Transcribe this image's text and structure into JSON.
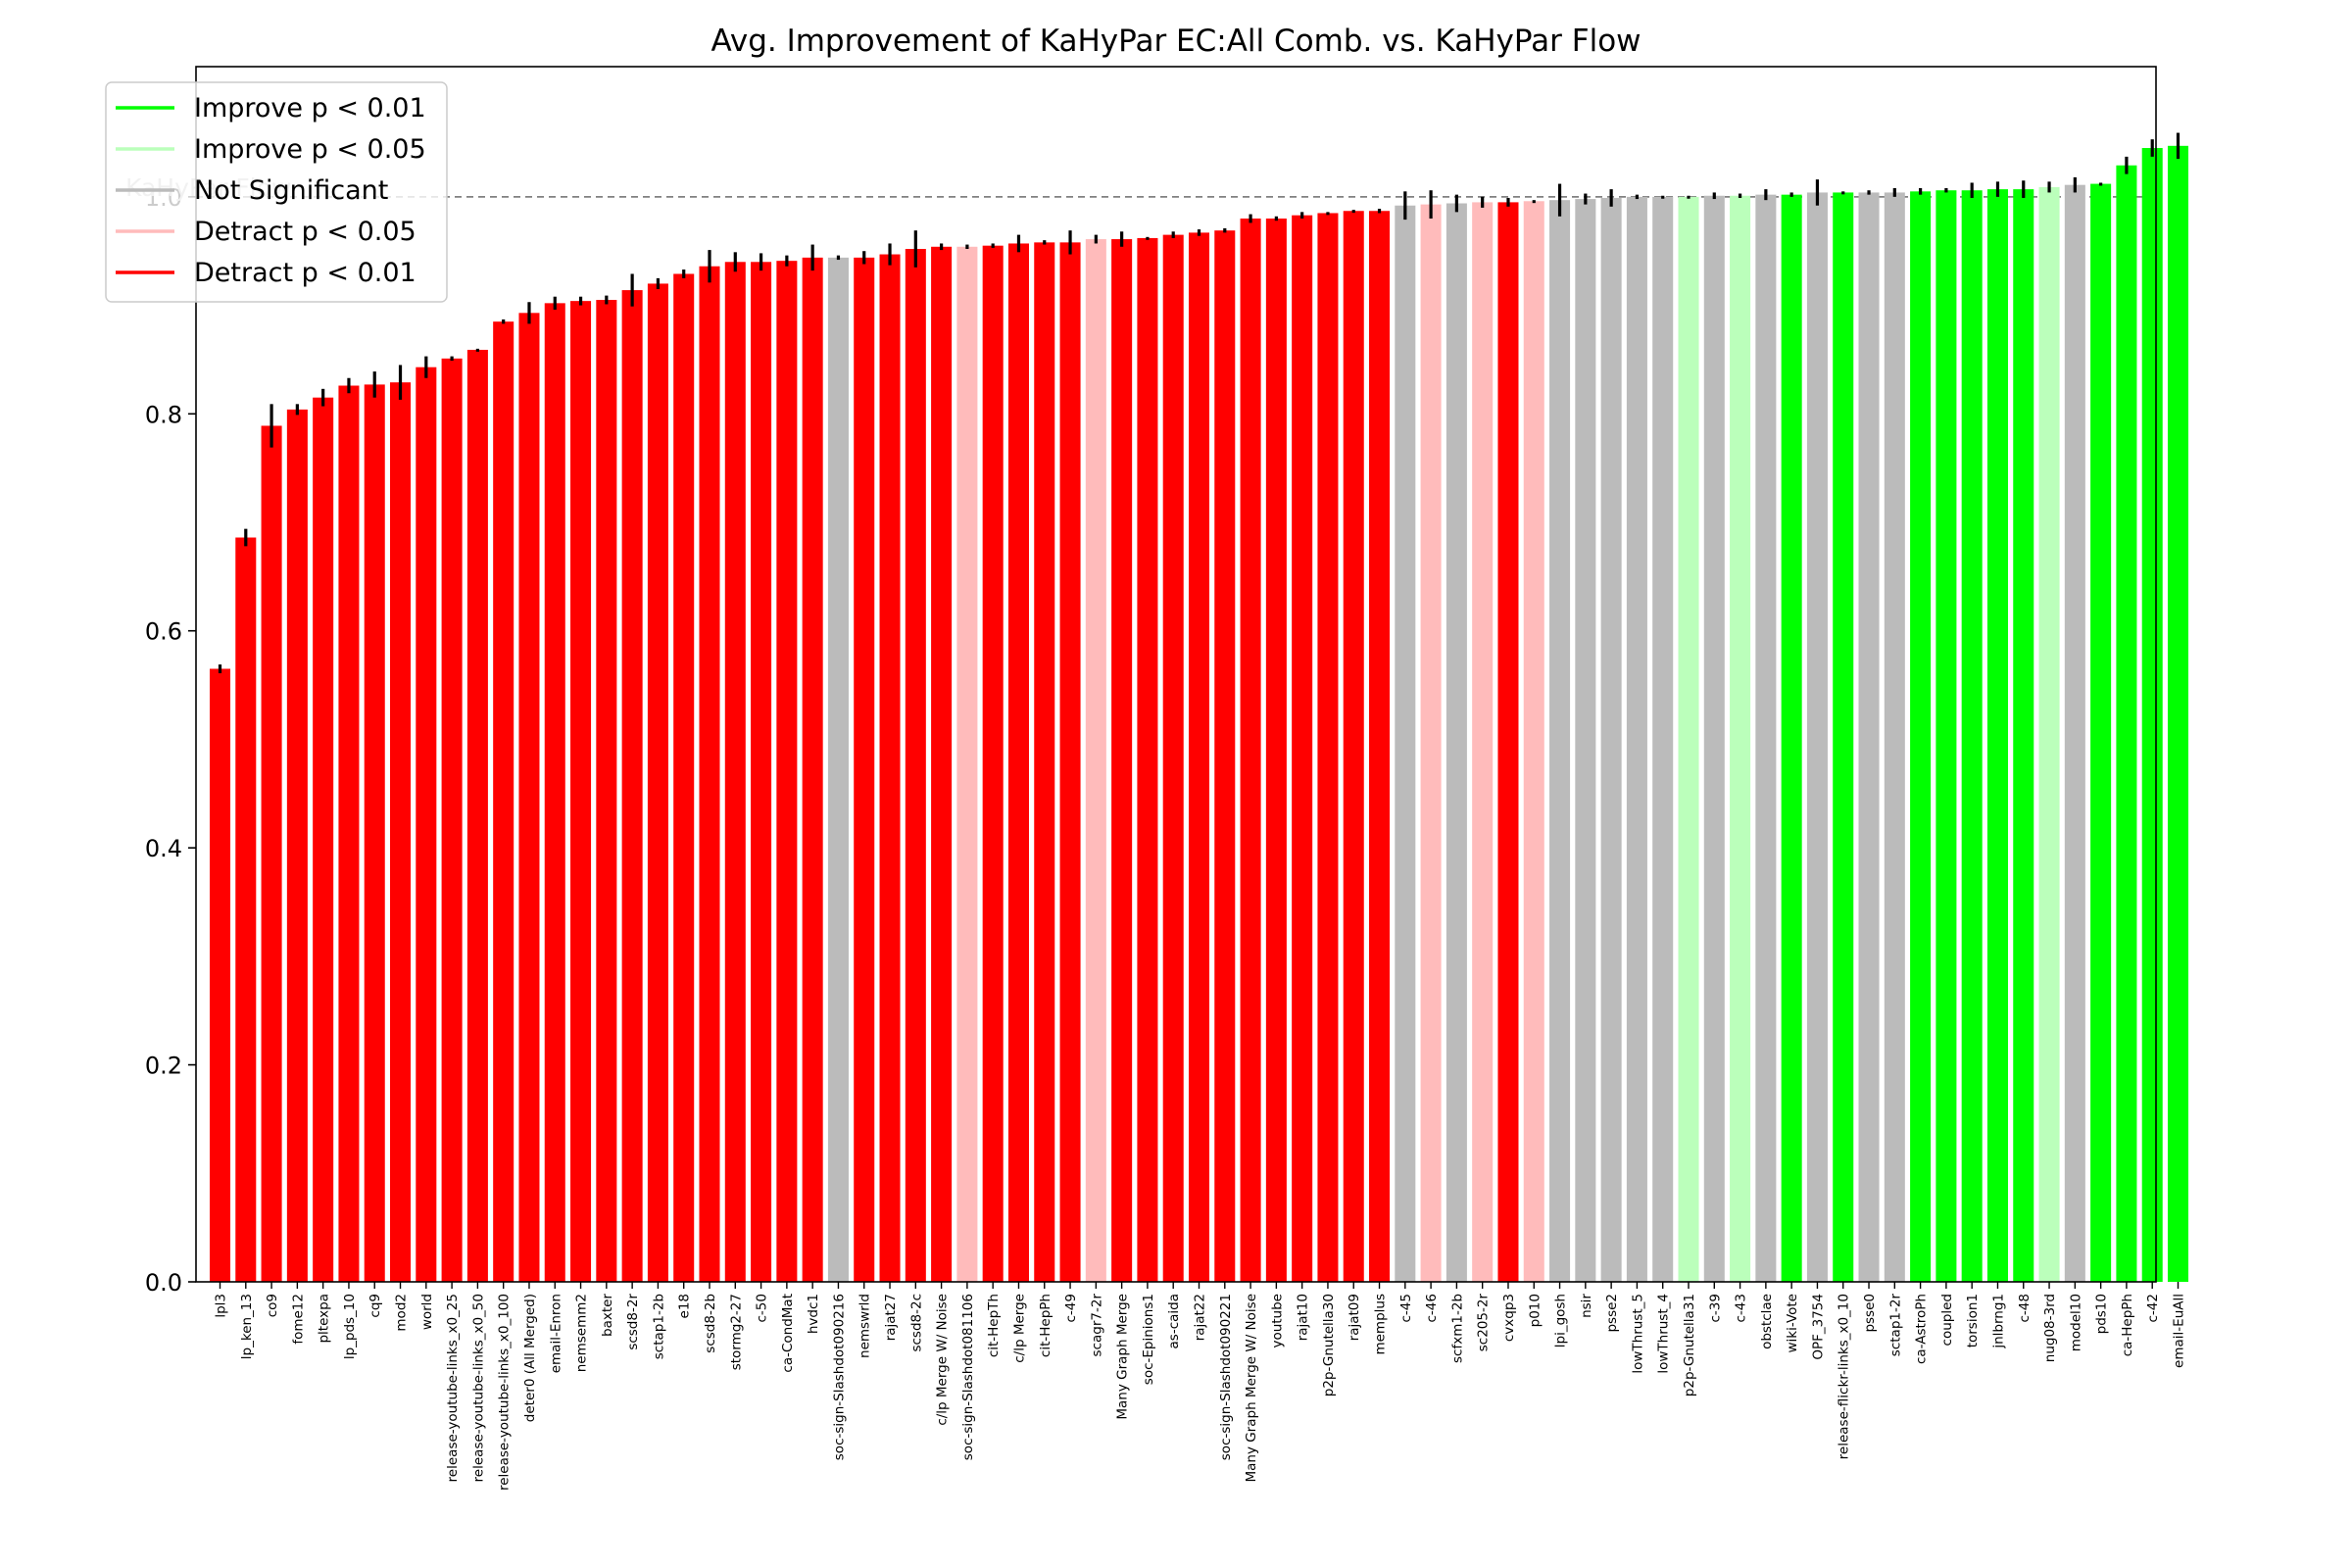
{
  "chart_data": {
    "type": "bar",
    "title": "Avg. Improvement of KaHyPar EC:All Comb. vs. KaHyPar Flow",
    "xlabel": "",
    "ylabel": "",
    "ylim": [
      0,
      1.12
    ],
    "yticks": [
      "0.0",
      "0.2",
      "0.4",
      "0.6",
      "0.8",
      "1.0"
    ],
    "reference_line": {
      "value": 1.0,
      "label": "KaHyPar Flow"
    },
    "legend_position": "top-left",
    "legend": [
      {
        "label": "Improve p < 0.01",
        "color": "#00ff00"
      },
      {
        "label": "Improve p < 0.05",
        "color": "#bbffbb"
      },
      {
        "label": "Not Significant",
        "color": "#bbbbbb"
      },
      {
        "label": "Detract p < 0.05",
        "color": "#ffbbbb"
      },
      {
        "label": "Detract p < 0.01",
        "color": "#ff0000"
      }
    ],
    "colors": {
      "ID1": "#00ff00",
      "ID5": "#bbffbb",
      "NS": "#bbbbbb",
      "DD5": "#ffbbbb",
      "DD1": "#ff0000"
    },
    "bars": [
      {
        "label": "lpl3",
        "value": 0.565,
        "err": 0.004,
        "sig": "DD1"
      },
      {
        "label": "lp_ken_13",
        "value": 0.686,
        "err": 0.008,
        "sig": "DD1"
      },
      {
        "label": "co9",
        "value": 0.789,
        "err": 0.02,
        "sig": "DD1"
      },
      {
        "label": "fome12",
        "value": 0.804,
        "err": 0.005,
        "sig": "DD1"
      },
      {
        "label": "pltexpa",
        "value": 0.815,
        "err": 0.008,
        "sig": "DD1"
      },
      {
        "label": "lp_pds_10",
        "value": 0.826,
        "err": 0.007,
        "sig": "DD1"
      },
      {
        "label": "cq9",
        "value": 0.827,
        "err": 0.012,
        "sig": "DD1"
      },
      {
        "label": "mod2",
        "value": 0.829,
        "err": 0.016,
        "sig": "DD1"
      },
      {
        "label": "world",
        "value": 0.843,
        "err": 0.01,
        "sig": "DD1"
      },
      {
        "label": "release-youtube-links_x0_25",
        "value": 0.851,
        "err": 0.002,
        "sig": "DD1"
      },
      {
        "label": "release-youtube-links_x0_50",
        "value": 0.859,
        "err": 0.001,
        "sig": "DD1"
      },
      {
        "label": "release-youtube-links_x0_100",
        "value": 0.885,
        "err": 0.002,
        "sig": "DD1"
      },
      {
        "label": "deter0 (All Merged)",
        "value": 0.893,
        "err": 0.01,
        "sig": "DD1"
      },
      {
        "label": "email-Enron",
        "value": 0.902,
        "err": 0.006,
        "sig": "DD1"
      },
      {
        "label": "nemsemm2",
        "value": 0.904,
        "err": 0.004,
        "sig": "DD1"
      },
      {
        "label": "baxter",
        "value": 0.905,
        "err": 0.004,
        "sig": "DD1"
      },
      {
        "label": "scsd8-2r",
        "value": 0.914,
        "err": 0.015,
        "sig": "DD1"
      },
      {
        "label": "sctap1-2b",
        "value": 0.92,
        "err": 0.005,
        "sig": "DD1"
      },
      {
        "label": "e18",
        "value": 0.929,
        "err": 0.004,
        "sig": "DD1"
      },
      {
        "label": "scsd8-2b",
        "value": 0.936,
        "err": 0.015,
        "sig": "DD1"
      },
      {
        "label": "stormg2-27",
        "value": 0.94,
        "err": 0.009,
        "sig": "DD1"
      },
      {
        "label": "c-50",
        "value": 0.94,
        "err": 0.008,
        "sig": "DD1"
      },
      {
        "label": "ca-CondMat",
        "value": 0.941,
        "err": 0.005,
        "sig": "DD1"
      },
      {
        "label": "hvdc1",
        "value": 0.944,
        "err": 0.012,
        "sig": "DD1"
      },
      {
        "label": "soc-sign-Slashdot090216",
        "value": 0.944,
        "err": 0.002,
        "sig": "NS"
      },
      {
        "label": "nemswrld",
        "value": 0.944,
        "err": 0.006,
        "sig": "DD1"
      },
      {
        "label": "rajat27",
        "value": 0.947,
        "err": 0.01,
        "sig": "DD1"
      },
      {
        "label": "scsd8-2c",
        "value": 0.952,
        "err": 0.017,
        "sig": "DD1"
      },
      {
        "label": "c/lp Merge W/ Noise",
        "value": 0.954,
        "err": 0.003,
        "sig": "DD1"
      },
      {
        "label": "soc-sign-Slashdot081106",
        "value": 0.954,
        "err": 0.002,
        "sig": "DD5"
      },
      {
        "label": "cit-HepTh",
        "value": 0.955,
        "err": 0.002,
        "sig": "DD1"
      },
      {
        "label": "c/lp Merge",
        "value": 0.957,
        "err": 0.008,
        "sig": "DD1"
      },
      {
        "label": "cit-HepPh",
        "value": 0.958,
        "err": 0.002,
        "sig": "DD1"
      },
      {
        "label": "c-49",
        "value": 0.958,
        "err": 0.011,
        "sig": "DD1"
      },
      {
        "label": "scagr7-2r",
        "value": 0.961,
        "err": 0.004,
        "sig": "DD5"
      },
      {
        "label": "Many Graph Merge",
        "value": 0.961,
        "err": 0.007,
        "sig": "DD1"
      },
      {
        "label": "soc-Epinions1",
        "value": 0.962,
        "err": 0.001,
        "sig": "DD1"
      },
      {
        "label": "as-caida",
        "value": 0.965,
        "err": 0.003,
        "sig": "DD1"
      },
      {
        "label": "rajat22",
        "value": 0.967,
        "err": 0.003,
        "sig": "DD1"
      },
      {
        "label": "soc-sign-Slashdot090221",
        "value": 0.969,
        "err": 0.002,
        "sig": "DD1"
      },
      {
        "label": "Many Graph Merge W/ Noise",
        "value": 0.98,
        "err": 0.004,
        "sig": "DD1"
      },
      {
        "label": "youtube",
        "value": 0.98,
        "err": 0.002,
        "sig": "DD1"
      },
      {
        "label": "rajat10",
        "value": 0.983,
        "err": 0.003,
        "sig": "DD1"
      },
      {
        "label": "p2p-Gnutella30",
        "value": 0.985,
        "err": 0.001,
        "sig": "DD1"
      },
      {
        "label": "rajat09",
        "value": 0.987,
        "err": 0.001,
        "sig": "DD1"
      },
      {
        "label": "memplus",
        "value": 0.987,
        "err": 0.002,
        "sig": "DD1"
      },
      {
        "label": "c-45",
        "value": 0.992,
        "err": 0.013,
        "sig": "NS"
      },
      {
        "label": "c-46",
        "value": 0.993,
        "err": 0.013,
        "sig": "DD5"
      },
      {
        "label": "scfxm1-2b",
        "value": 0.994,
        "err": 0.008,
        "sig": "NS"
      },
      {
        "label": "sc205-2r",
        "value": 0.995,
        "err": 0.005,
        "sig": "DD5"
      },
      {
        "label": "cvxqp3",
        "value": 0.995,
        "err": 0.004,
        "sig": "DD1"
      },
      {
        "label": "p010",
        "value": 0.996,
        "err": 0.001,
        "sig": "DD5"
      },
      {
        "label": "lpi_gosh",
        "value": 0.997,
        "err": 0.015,
        "sig": "NS"
      },
      {
        "label": "nsir",
        "value": 0.998,
        "err": 0.005,
        "sig": "NS"
      },
      {
        "label": "psse2",
        "value": 0.999,
        "err": 0.008,
        "sig": "NS"
      },
      {
        "label": "lowThrust_5",
        "value": 1.0,
        "err": 0.002,
        "sig": "NS"
      },
      {
        "label": "lowThrust_4",
        "value": 1.0,
        "err": 0.001,
        "sig": "NS"
      },
      {
        "label": "p2p-Gnutella31",
        "value": 1.0,
        "err": 0.001,
        "sig": "ID5"
      },
      {
        "label": "c-39",
        "value": 1.001,
        "err": 0.003,
        "sig": "NS"
      },
      {
        "label": "c-43",
        "value": 1.001,
        "err": 0.002,
        "sig": "ID5"
      },
      {
        "label": "obstclae",
        "value": 1.002,
        "err": 0.005,
        "sig": "NS"
      },
      {
        "label": "wiki-Vote",
        "value": 1.002,
        "err": 0.002,
        "sig": "ID1"
      },
      {
        "label": "OPF_3754",
        "value": 1.004,
        "err": 0.012,
        "sig": "NS"
      },
      {
        "label": "release-flickr-links_x0_10",
        "value": 1.004,
        "err": 0.001,
        "sig": "ID1"
      },
      {
        "label": "psse0",
        "value": 1.004,
        "err": 0.002,
        "sig": "NS"
      },
      {
        "label": "sctap1-2r",
        "value": 1.004,
        "err": 0.004,
        "sig": "NS"
      },
      {
        "label": "ca-AstroPh",
        "value": 1.005,
        "err": 0.003,
        "sig": "ID1"
      },
      {
        "label": "coupled",
        "value": 1.006,
        "err": 0.002,
        "sig": "ID1"
      },
      {
        "label": "torsion1",
        "value": 1.006,
        "err": 0.007,
        "sig": "ID1"
      },
      {
        "label": "jnlbrng1",
        "value": 1.007,
        "err": 0.007,
        "sig": "ID1"
      },
      {
        "label": "c-48",
        "value": 1.007,
        "err": 0.008,
        "sig": "ID1"
      },
      {
        "label": "nug08-3rd",
        "value": 1.009,
        "err": 0.005,
        "sig": "ID5"
      },
      {
        "label": "model10",
        "value": 1.011,
        "err": 0.007,
        "sig": "NS"
      },
      {
        "label": "pds10",
        "value": 1.012,
        "err": 0.001,
        "sig": "ID1"
      },
      {
        "label": "ca-HepPh",
        "value": 1.029,
        "err": 0.008,
        "sig": "ID1"
      },
      {
        "label": "c-42",
        "value": 1.045,
        "err": 0.008,
        "sig": "ID1"
      },
      {
        "label": "email-EuAll",
        "value": 1.047,
        "err": 0.012,
        "sig": "ID1"
      }
    ]
  }
}
